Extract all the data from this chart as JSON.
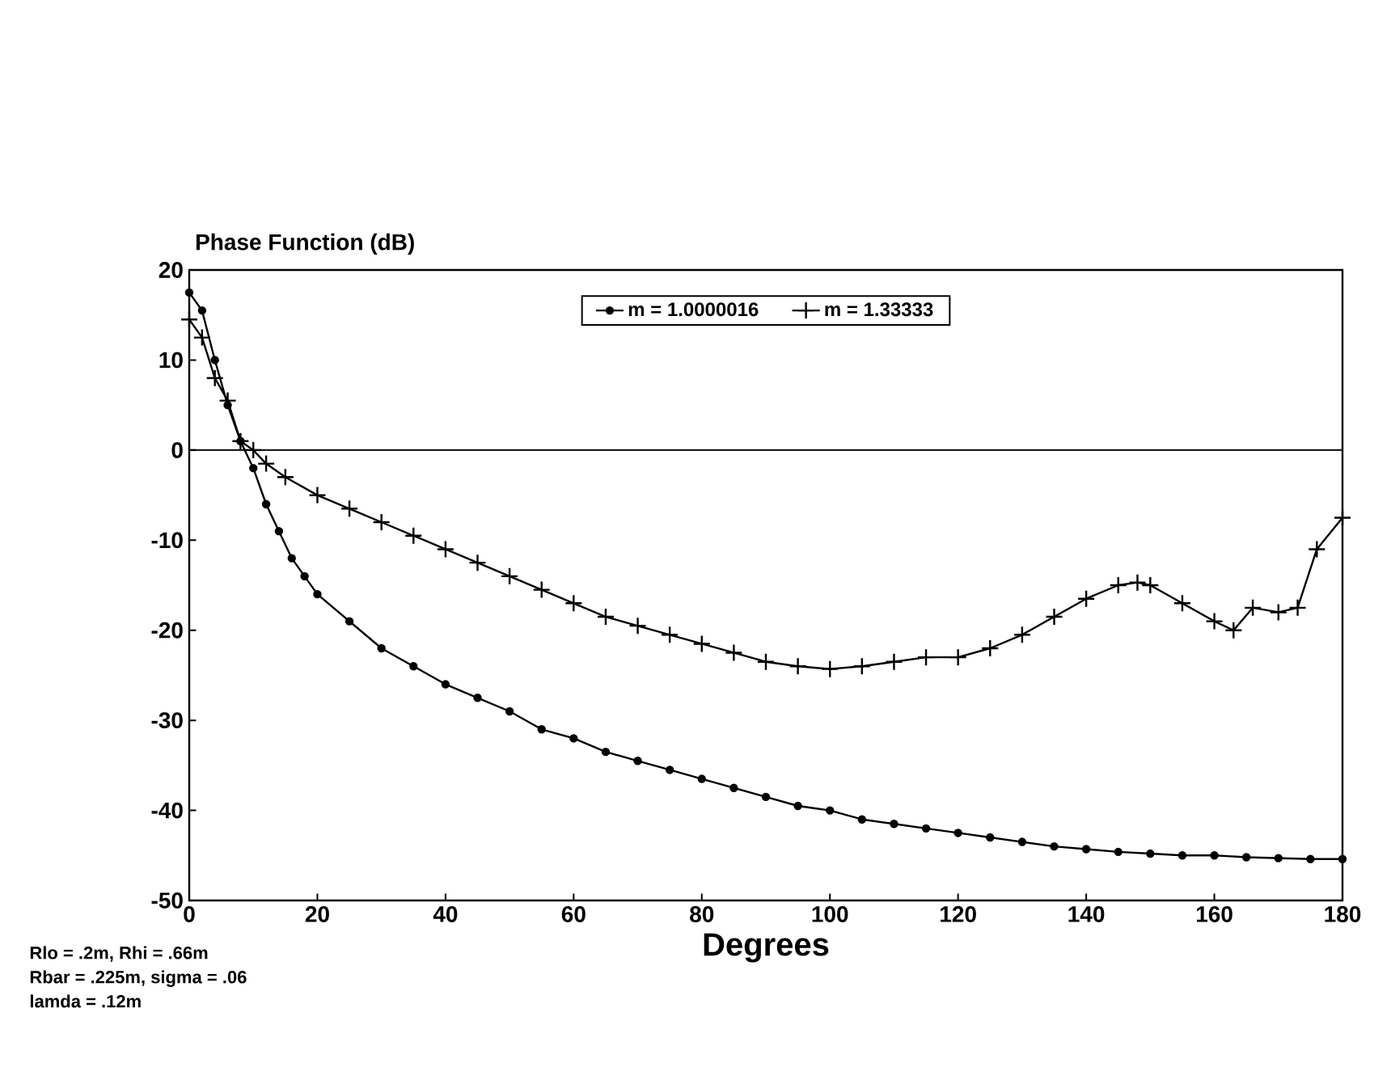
{
  "chart_data": {
    "type": "line",
    "title": "Phase Function (dB)",
    "xlabel": "Degrees",
    "xlim": [
      0,
      180
    ],
    "xticks": [
      0,
      20,
      40,
      60,
      80,
      100,
      120,
      140,
      160,
      180
    ],
    "ylim": [
      -50,
      20
    ],
    "yticks": [
      -50,
      -40,
      -30,
      -20,
      -10,
      0,
      10,
      20
    ],
    "legend": "top",
    "grid": false,
    "ref_lines": [
      {
        "axis": "y",
        "value": 0,
        "color": "#000000"
      }
    ],
    "series": [
      {
        "name": "m = 1.0000016",
        "color": "#000000",
        "marker": "circle",
        "x": [
          0,
          2,
          4,
          6,
          8,
          10,
          12,
          14,
          16,
          18,
          20,
          25,
          30,
          35,
          40,
          45,
          50,
          55,
          60,
          65,
          70,
          75,
          80,
          85,
          90,
          95,
          100,
          105,
          110,
          115,
          120,
          125,
          130,
          135,
          140,
          145,
          150,
          155,
          160,
          165,
          170,
          175,
          180
        ],
        "values": [
          17.5,
          15.5,
          10,
          5,
          1,
          -2,
          -6,
          -9,
          -12,
          -14,
          -16,
          -19,
          -22,
          -24,
          -26,
          -27.5,
          -29,
          -31,
          -32,
          -33.5,
          -34.5,
          -35.5,
          -36.5,
          -37.5,
          -38.5,
          -39.5,
          -40,
          -41,
          -41.5,
          -42,
          -42.5,
          -43,
          -43.5,
          -44,
          -44.3,
          -44.6,
          -44.8,
          -45,
          -45,
          -45.2,
          -45.3,
          -45.4,
          -45.4
        ]
      },
      {
        "name": "m = 1.33333",
        "color": "#000000",
        "marker": "cross",
        "x": [
          0,
          2,
          4,
          6,
          8,
          10,
          12,
          15,
          20,
          25,
          30,
          35,
          40,
          45,
          50,
          55,
          60,
          65,
          70,
          75,
          80,
          85,
          90,
          95,
          100,
          105,
          110,
          115,
          120,
          125,
          130,
          135,
          140,
          145,
          148,
          150,
          155,
          160,
          163,
          166,
          170,
          173,
          176,
          180
        ],
        "values": [
          14.5,
          12.5,
          8,
          5.5,
          1,
          0,
          -1.5,
          -3,
          -5,
          -6.5,
          -8,
          -9.5,
          -11,
          -12.5,
          -14,
          -15.5,
          -17,
          -18.5,
          -19.5,
          -20.5,
          -21.5,
          -22.5,
          -23.5,
          -24,
          -24.3,
          -24,
          -23.5,
          -23,
          -23,
          -22,
          -20.5,
          -18.5,
          -16.5,
          -15,
          -14.7,
          -15,
          -17,
          -19,
          -20,
          -17.5,
          -18,
          -17.5,
          -11,
          -7.5
        ]
      }
    ],
    "annotations": [
      "Rlo = .2m, Rhi = .66m",
      "Rbar = .225m, sigma = .06",
      "lamda = .12m"
    ]
  }
}
